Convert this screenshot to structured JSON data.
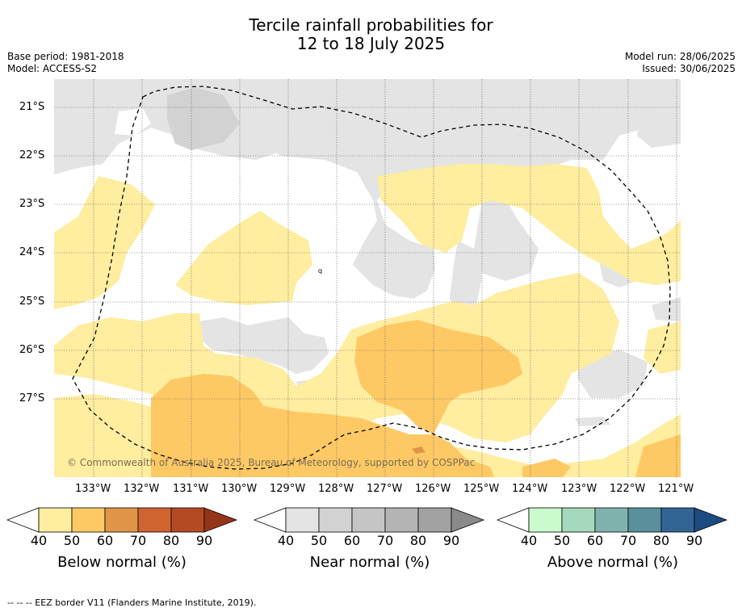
{
  "title_line1": "Tercile rainfall probabilities for",
  "title_line2": "12 to 18 July 2025",
  "base_period": "Base period: 1981-2018",
  "model": "Model: ACCESS-S2",
  "model_run": "Model run: 28/06/2025",
  "issued": "Issued: 30/06/2025",
  "copyright": "© Commonwealth of Australia 2025, Bureau of Meteorology, supported by COSPPac",
  "lat_labels": [
    "21°S",
    "22°S",
    "23°S",
    "24°S",
    "25°S",
    "26°S",
    "27°S"
  ],
  "lon_labels": [
    "133°W",
    "132°W",
    "131°W",
    "130°W",
    "129°W",
    "128°W",
    "127°W",
    "126°W",
    "125°W",
    "124°W",
    "123°W",
    "122°W",
    "121°W"
  ],
  "colorbars": [
    {
      "title": "Below normal (%)",
      "ticks": [
        "40",
        "50",
        "60",
        "70",
        "80",
        "90"
      ],
      "colors": [
        "#ffeda0",
        "#fec965",
        "#e09548",
        "#cf6431",
        "#b44a24",
        "#96341a"
      ]
    },
    {
      "title": "Near normal (%)",
      "ticks": [
        "40",
        "50",
        "60",
        "70",
        "80",
        "90"
      ],
      "colors": [
        "#e4e4e4",
        "#d2d2d2",
        "#c5c5c5",
        "#b4b4b4",
        "#a2a2a2",
        "#8a8a8a"
      ]
    },
    {
      "title": "Above normal (%)",
      "ticks": [
        "40",
        "50",
        "60",
        "70",
        "80",
        "90"
      ],
      "colors": [
        "#c9fbcc",
        "#a4d9bd",
        "#80b3ae",
        "#5a8f9c",
        "#326594",
        "#1e4a82"
      ]
    }
  ],
  "footer": "--  --  -- EEZ border V11 (Flanders Marine Institute, 2019).",
  "colors": {
    "below_40": "#ffeda0",
    "below_50": "#fec965",
    "below_60": "#e09548",
    "near_40": "#e4e4e4",
    "near_50": "#d2d2d2"
  }
}
